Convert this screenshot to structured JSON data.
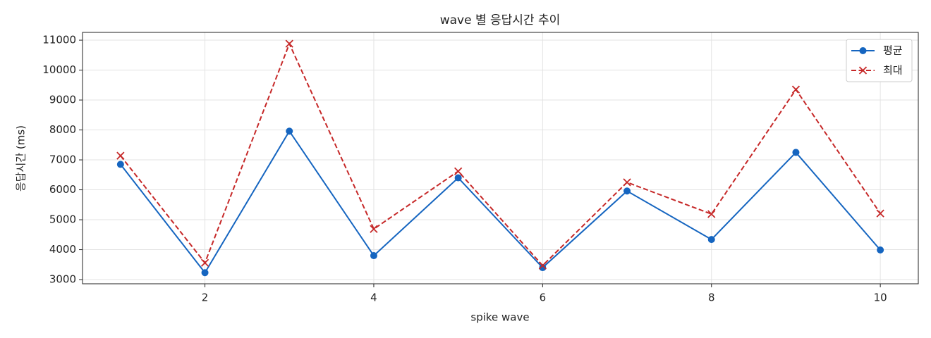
{
  "chart_data": {
    "type": "line",
    "title": "wave 별 응답시간 추이",
    "x_label": "spike wave",
    "y_label": "응답시간 (ms)",
    "x": [
      1,
      2,
      3,
      4,
      5,
      6,
      7,
      8,
      9,
      10
    ],
    "series": [
      {
        "name": "평균",
        "color": "#1565c0",
        "marker": "o",
        "linestyle": "solid",
        "values": [
          6850,
          3230,
          7960,
          3800,
          6400,
          3400,
          5960,
          4340,
          7250,
          3990
        ]
      },
      {
        "name": "최대",
        "color": "#c62828",
        "marker": "x",
        "linestyle": "dashed",
        "values": [
          7140,
          3560,
          10880,
          4690,
          6620,
          3470,
          6250,
          5190,
          9350,
          5210
        ]
      }
    ],
    "xlim": [
      0.55,
      10.45
    ],
    "xticks": [
      2,
      4,
      6,
      8,
      10
    ],
    "ylim": [
      2860,
      11260
    ],
    "yticks": [
      3000,
      4000,
      5000,
      6000,
      7000,
      8000,
      9000,
      10000,
      11000
    ],
    "grid": true,
    "legend": "upper right"
  }
}
